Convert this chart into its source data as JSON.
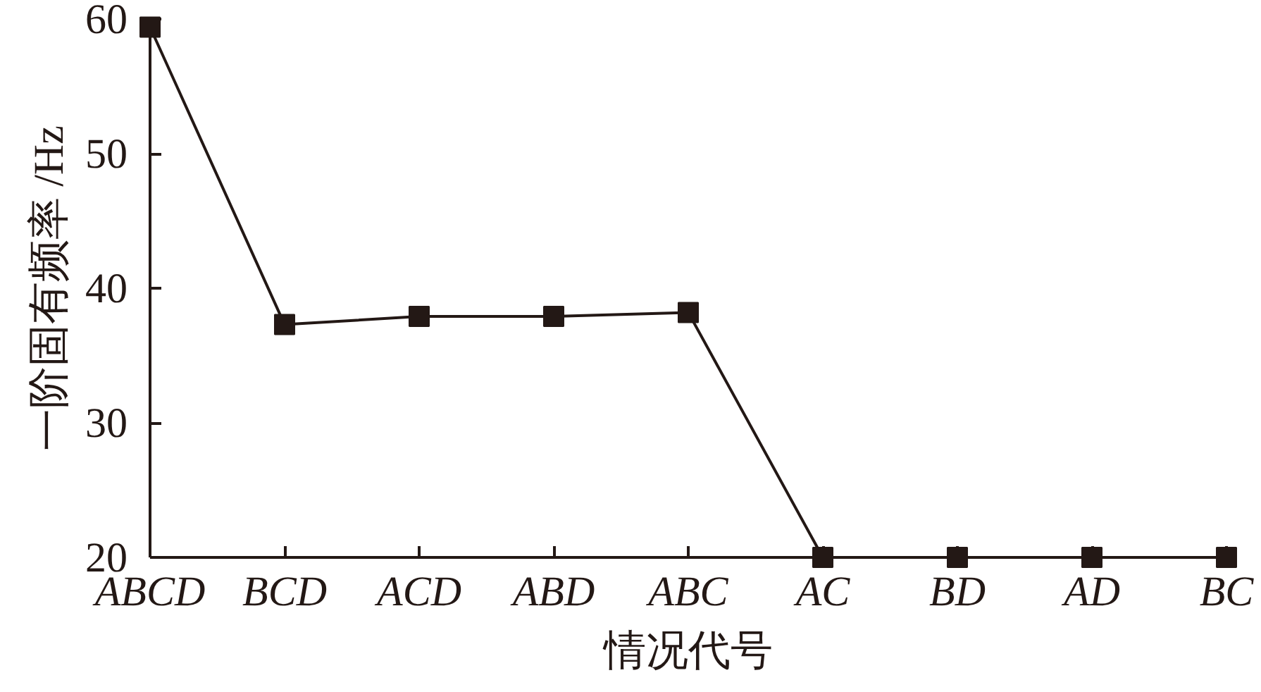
{
  "chart_data": {
    "type": "line",
    "xlabel": "情况代号",
    "ylabel": "一阶固有频率 /Hz",
    "categories": [
      "ABCD",
      "BCD",
      "ACD",
      "ABD",
      "ABC",
      "AC",
      "BD",
      "AD",
      "BC"
    ],
    "series": [
      {
        "color": "#231815",
        "values": [
          59.4,
          37.3,
          37.9,
          37.9,
          38.2,
          20,
          20,
          20,
          20
        ]
      }
    ],
    "ylim": [
      20,
      60
    ],
    "yticks": [
      20,
      30,
      40,
      50,
      60
    ],
    "marker": "square",
    "line_style": "solid"
  }
}
